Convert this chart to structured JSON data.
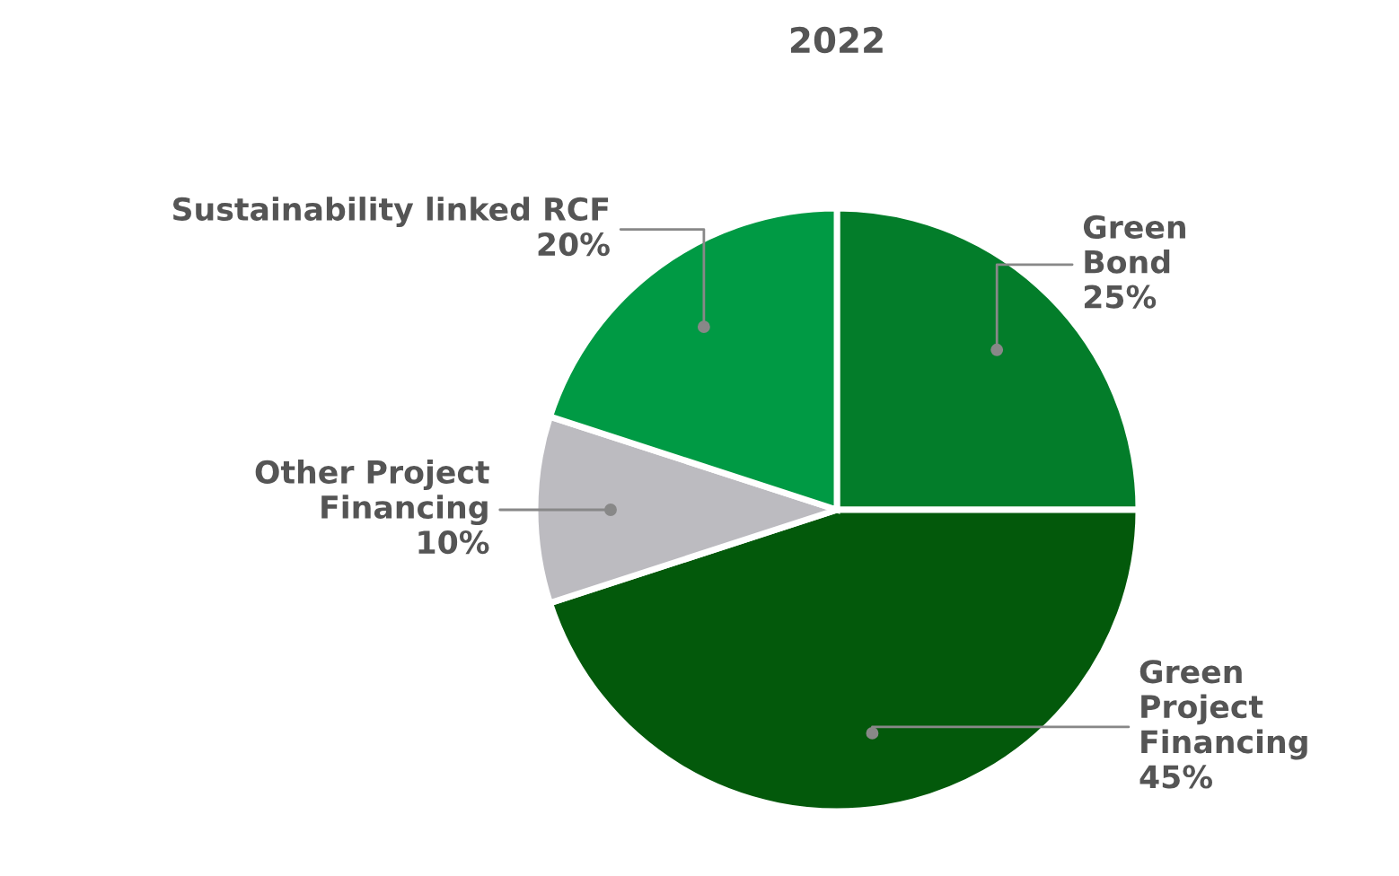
{
  "chart_data": {
    "type": "pie",
    "title": "2022",
    "categories": [
      "Green\nBond",
      "Green\nProject\nFinancing",
      "Other Project\nFinancing",
      "Sustainability linked RCF"
    ],
    "values": [
      25,
      45,
      10,
      20
    ],
    "value_labels": [
      "25%",
      "45%",
      "10%",
      "20%"
    ],
    "colors": [
      "#037d2a",
      "#03590b",
      "#bcbbc0",
      "#009a44"
    ],
    "legend": false
  }
}
